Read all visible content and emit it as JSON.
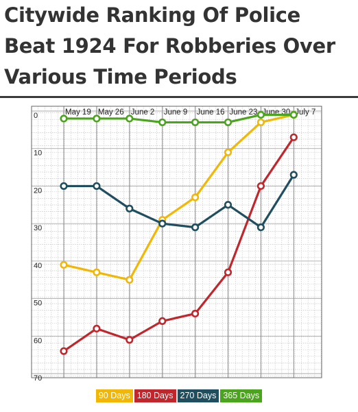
{
  "title": "Citywide Ranking Of Police Beat 1924 For Robberies Over Various Time Periods",
  "chart_data": {
    "type": "line",
    "categories": [
      "May 19",
      "May 26",
      "June 2",
      "June 9",
      "June 16",
      "June 23",
      "June 30",
      "July 7"
    ],
    "y_tick_labels": [
      "0",
      "10",
      "20",
      "30",
      "40",
      "50",
      "60",
      "70"
    ],
    "ylim": [
      0,
      70
    ],
    "y_inverted": true,
    "grid": true,
    "legend_placement": "bottom",
    "series": [
      {
        "name": "90 Days",
        "color": "#f2b705",
        "values": [
          41,
          43,
          45,
          29,
          23,
          11,
          3,
          1
        ]
      },
      {
        "name": "180 Days",
        "color": "#c0272d",
        "values": [
          64,
          58,
          61,
          56,
          54,
          43,
          20,
          7
        ]
      },
      {
        "name": "270 Days",
        "color": "#1f4e5f",
        "values": [
          20,
          20,
          26,
          30,
          31,
          25,
          31,
          17
        ]
      },
      {
        "name": "365 Days",
        "color": "#4aa51c",
        "values": [
          2,
          2,
          2,
          3,
          3,
          3,
          1,
          1
        ]
      }
    ]
  }
}
